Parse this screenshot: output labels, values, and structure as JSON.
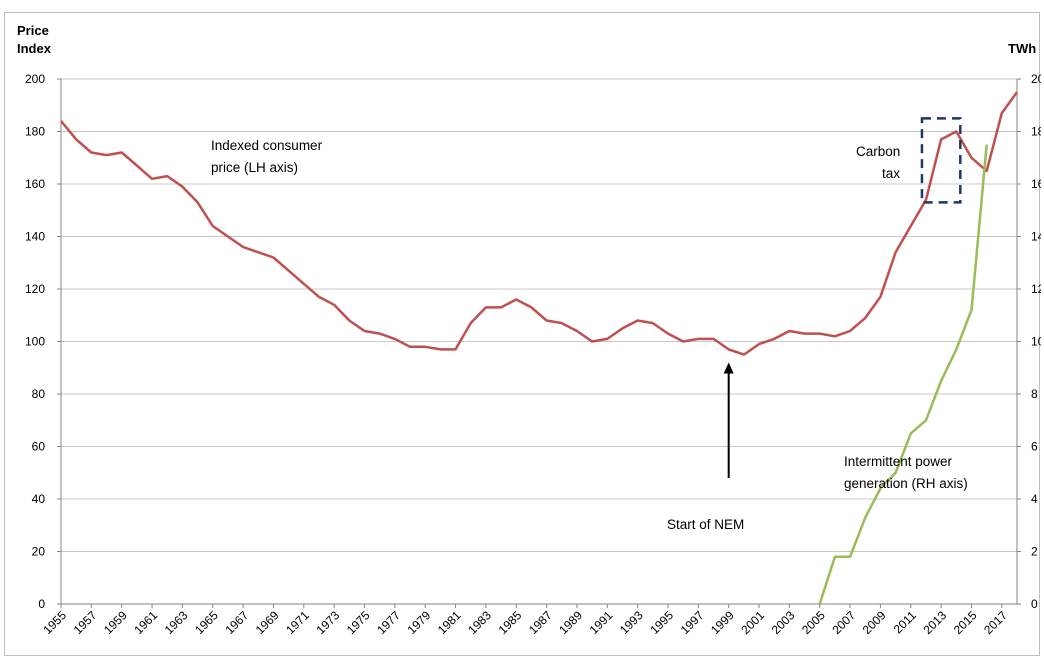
{
  "chart_data": {
    "type": "line",
    "title": "",
    "ylabel_left": [
      "Price",
      "Index"
    ],
    "ylabel_right": "TWh",
    "ylim_left": [
      0,
      200
    ],
    "yticks_left": [
      0,
      20,
      40,
      60,
      80,
      100,
      120,
      140,
      160,
      180,
      200
    ],
    "ylim_right": [
      0,
      20
    ],
    "yticks_right": [
      0,
      2,
      4,
      6,
      8,
      10,
      12,
      14,
      16,
      18,
      20
    ],
    "xlim": [
      1955,
      2018
    ],
    "xticks": [
      "1955",
      "1957",
      "1959",
      "1961",
      "1963",
      "1965",
      "1967",
      "1969",
      "1971",
      "1973",
      "1975",
      "1977",
      "1979",
      "1981",
      "1983",
      "1985",
      "1987",
      "1989",
      "1991",
      "1993",
      "1995",
      "1997",
      "1999",
      "2001",
      "2003",
      "2005",
      "2007",
      "2009",
      "2011",
      "2013",
      "2015",
      "2017"
    ],
    "grid": true,
    "series": [
      {
        "axis": "left",
        "color": "#c0504d",
        "x": [
          1955,
          1956,
          1957,
          1958,
          1959,
          1960,
          1961,
          1962,
          1963,
          1964,
          1965,
          1966,
          1967,
          1968,
          1969,
          1970,
          1971,
          1972,
          1973,
          1974,
          1975,
          1976,
          1977,
          1978,
          1979,
          1980,
          1981,
          1982,
          1983,
          1984,
          1985,
          1986,
          1987,
          1988,
          1989,
          1990,
          1991,
          1992,
          1993,
          1994,
          1995,
          1996,
          1997,
          1998,
          1999,
          2000,
          2001,
          2002,
          2003,
          2004,
          2005,
          2006,
          2007,
          2008,
          2009,
          2010,
          2011,
          2012,
          2013,
          2014,
          2015,
          2016,
          2017,
          2018
        ],
        "y": [
          184,
          177,
          172,
          171,
          172,
          167,
          162,
          163,
          159,
          153,
          144,
          140,
          136,
          134,
          132,
          127,
          122,
          117,
          114,
          108,
          104,
          103,
          101,
          98,
          98,
          97,
          97,
          107,
          113,
          113,
          116,
          113,
          108,
          107,
          104,
          100,
          101,
          105,
          108,
          107,
          103,
          100,
          101,
          101,
          97,
          95,
          99,
          101,
          104,
          103,
          103,
          102,
          104,
          109,
          117,
          134,
          144,
          154,
          177,
          180,
          170,
          165,
          187,
          195
        ]
      },
      {
        "axis": "right",
        "color": "#9bbb59",
        "x": [
          2005,
          2006,
          2007,
          2008,
          2009,
          2010,
          2011,
          2012,
          2013,
          2014,
          2015,
          2016
        ],
        "y": [
          0,
          1.8,
          1.8,
          3.3,
          4.4,
          5,
          6.5,
          7,
          8.5,
          9.7,
          11.2,
          17.5
        ]
      }
    ],
    "annotations": {
      "consumer_price": [
        "Indexed consumer",
        "price (LH axis)"
      ],
      "carbon_tax": [
        "Carbon",
        "tax"
      ],
      "intermittent": [
        "Intermittent power",
        "generation (RH axis)"
      ],
      "nem": "Start of NEM"
    },
    "carbon_tax_box": {
      "x_from": 2012,
      "x_to": 2014,
      "y_from": 153,
      "y_to": 185
    },
    "nem_arrow": {
      "x": 1999,
      "y_from": 48,
      "y_to": 92
    }
  }
}
